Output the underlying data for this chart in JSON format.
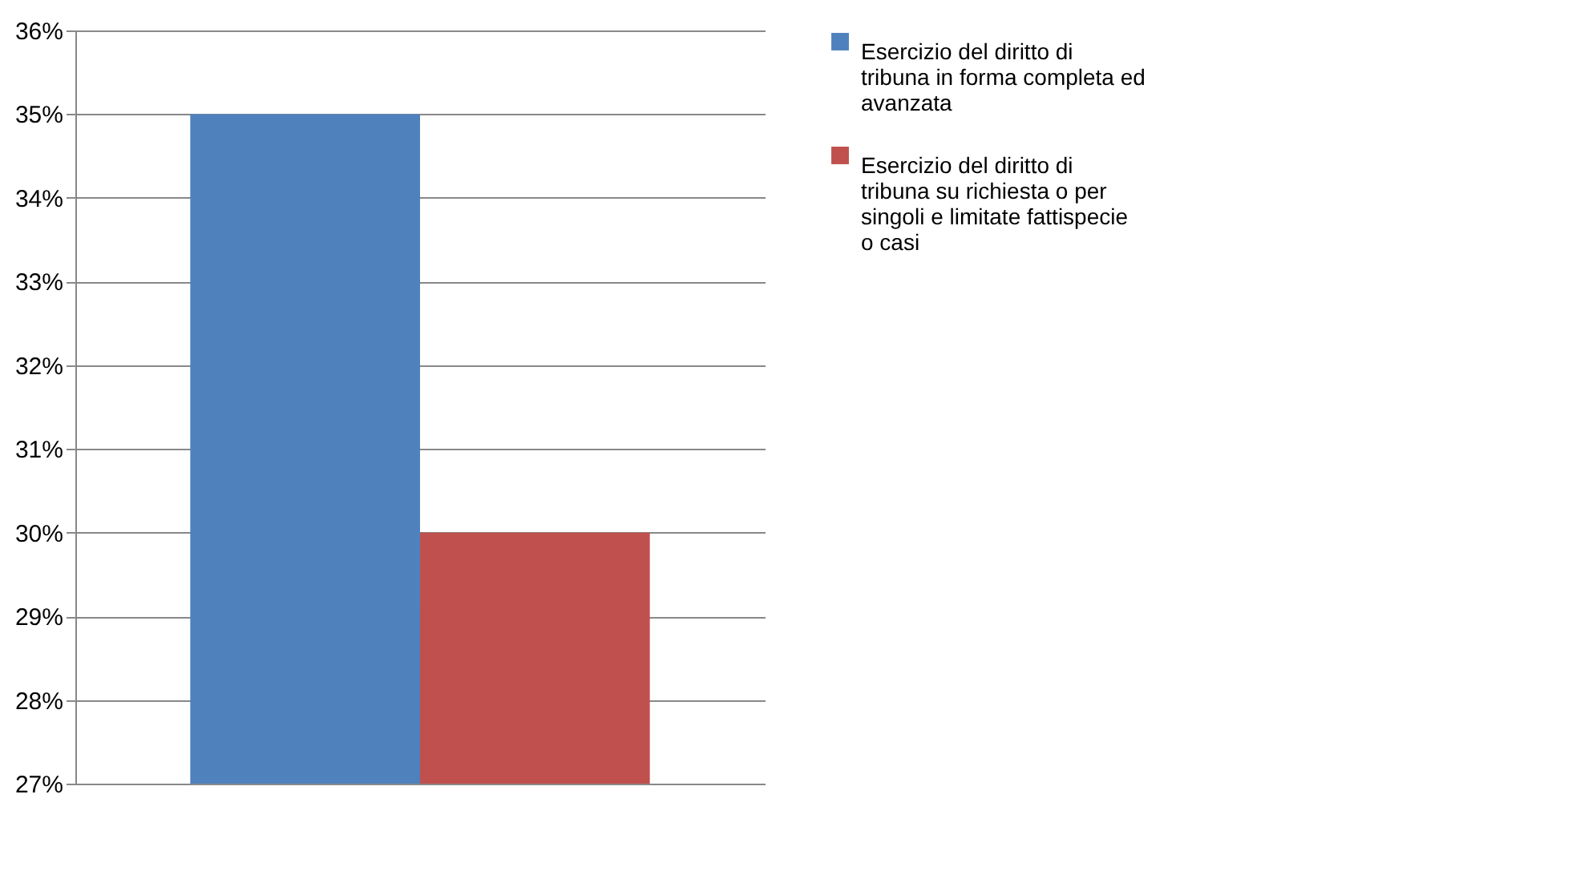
{
  "chart_data": {
    "type": "bar",
    "categories": [
      null
    ],
    "series": [
      {
        "name": "Esercizio del diritto di tribuna in forma completa ed avanzata",
        "color": "#4f81bd",
        "values": [
          35
        ]
      },
      {
        "name": "Esercizio del diritto di tribuna su richiesta o per singoli e limitate fattispecie o casi",
        "color": "#c0504d",
        "values": [
          30
        ]
      }
    ],
    "ylim": [
      27,
      36
    ],
    "yticks": [
      {
        "value": 27,
        "label": "27%"
      },
      {
        "value": 28,
        "label": "28%"
      },
      {
        "value": 29,
        "label": "29%"
      },
      {
        "value": 30,
        "label": "30%"
      },
      {
        "value": 31,
        "label": "31%"
      },
      {
        "value": 32,
        "label": "32%"
      },
      {
        "value": 33,
        "label": "33%"
      },
      {
        "value": 34,
        "label": "34%"
      },
      {
        "value": 35,
        "label": "35%"
      },
      {
        "value": 36,
        "label": "36%"
      }
    ],
    "grid": "y",
    "legend": "right",
    "tick_labels": "y"
  }
}
